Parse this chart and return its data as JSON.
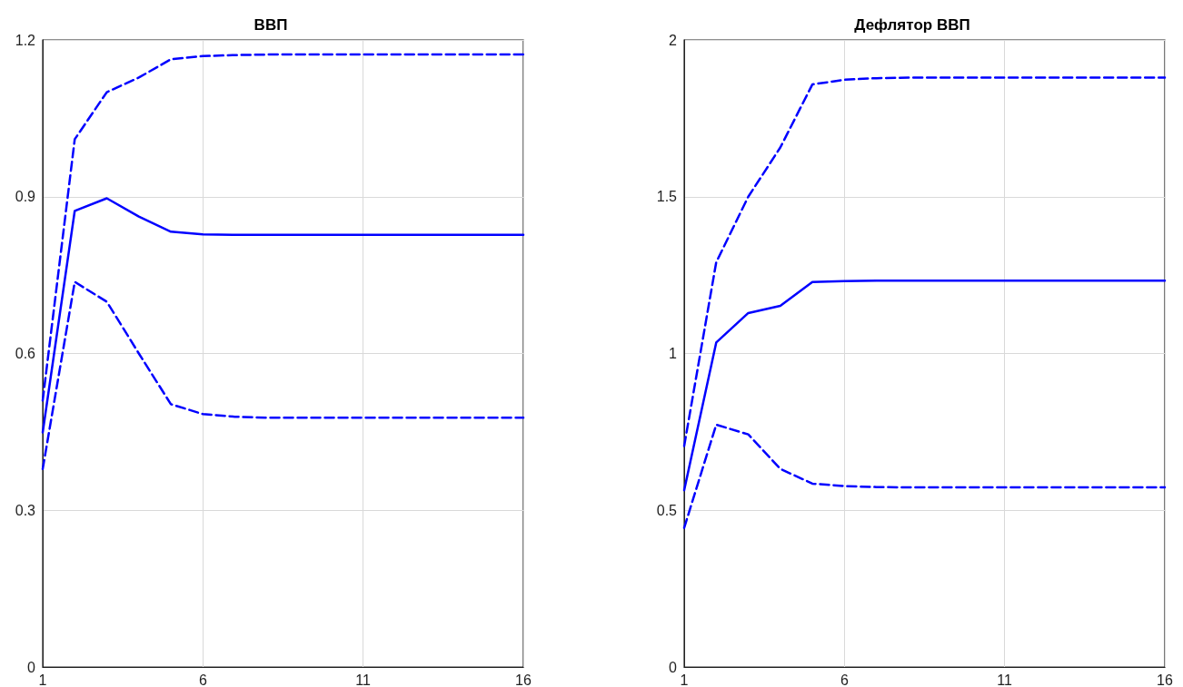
{
  "chart_data": [
    {
      "type": "line",
      "title": "ВВП",
      "x": [
        1,
        2,
        3,
        4,
        5,
        6,
        7,
        8,
        9,
        10,
        11,
        12,
        13,
        14,
        15,
        16
      ],
      "xlim": [
        1,
        16
      ],
      "xticks": [
        1,
        6,
        11,
        16
      ],
      "ylim": [
        0,
        1.2
      ],
      "yticks": [
        0,
        0.3,
        0.6,
        0.9,
        1.2
      ],
      "grid": true,
      "marker": "none",
      "series": [
        {
          "color": "#0000ff",
          "line_style": "solid",
          "values": [
            0.449,
            0.873,
            0.897,
            0.862,
            0.833,
            0.828,
            0.827,
            0.827,
            0.827,
            0.827,
            0.827,
            0.827,
            0.827,
            0.827,
            0.827,
            0.827
          ]
        },
        {
          "color": "#0000ff",
          "line_style": "dashed",
          "values": [
            0.51,
            1.01,
            1.1,
            1.128,
            1.163,
            1.169,
            1.171,
            1.172,
            1.172,
            1.172,
            1.172,
            1.172,
            1.172,
            1.172,
            1.172,
            1.172
          ]
        },
        {
          "color": "#0000ff",
          "line_style": "dashed",
          "values": [
            0.379,
            0.737,
            0.699,
            0.6,
            0.503,
            0.484,
            0.479,
            0.477,
            0.477,
            0.477,
            0.477,
            0.477,
            0.477,
            0.477,
            0.477,
            0.477
          ]
        }
      ]
    },
    {
      "type": "line",
      "title": "Дефлятор ВВП",
      "x": [
        1,
        2,
        3,
        4,
        5,
        6,
        7,
        8,
        9,
        10,
        11,
        12,
        13,
        14,
        15,
        16
      ],
      "xlim": [
        1,
        16
      ],
      "xticks": [
        1,
        6,
        11,
        16
      ],
      "ylim": [
        0,
        2
      ],
      "yticks": [
        0,
        0.5,
        1,
        1.5,
        2
      ],
      "grid": true,
      "marker": "none",
      "series": [
        {
          "color": "#0000ff",
          "line_style": "solid",
          "values": [
            0.564,
            1.035,
            1.129,
            1.152,
            1.228,
            1.231,
            1.232,
            1.232,
            1.232,
            1.232,
            1.232,
            1.232,
            1.232,
            1.232,
            1.232,
            1.232
          ]
        },
        {
          "color": "#0000ff",
          "line_style": "dashed",
          "values": [
            0.705,
            1.291,
            1.5,
            1.657,
            1.858,
            1.873,
            1.878,
            1.88,
            1.88,
            1.88,
            1.88,
            1.88,
            1.88,
            1.88,
            1.88,
            1.88
          ]
        },
        {
          "color": "#0000ff",
          "line_style": "dashed",
          "values": [
            0.444,
            0.773,
            0.742,
            0.632,
            0.585,
            0.577,
            0.574,
            0.573,
            0.573,
            0.573,
            0.573,
            0.573,
            0.573,
            0.573,
            0.573,
            0.573
          ]
        }
      ]
    }
  ]
}
